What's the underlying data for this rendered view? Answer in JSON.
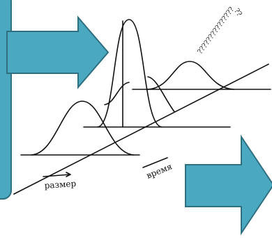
{
  "labels": {
    "size": "размер",
    "time": "время",
    "question_marks": "?????????????????"
  }
}
